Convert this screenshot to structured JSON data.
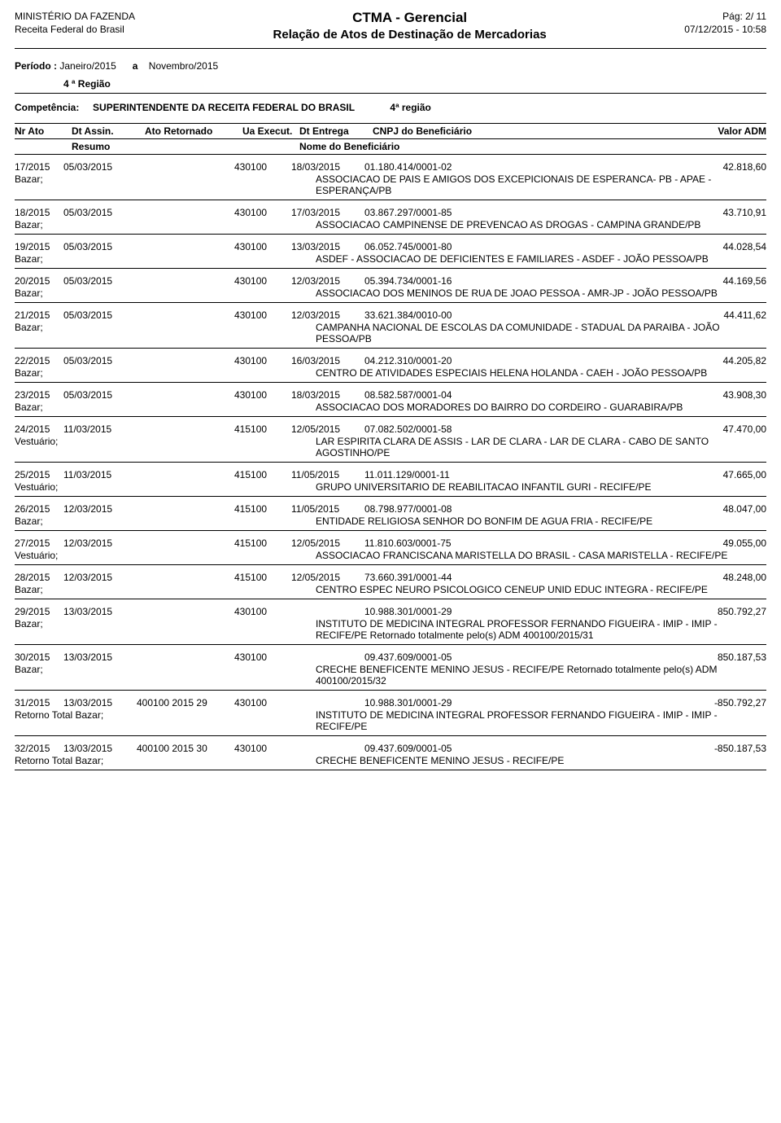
{
  "header": {
    "ministry": "MINISTÉRIO DA FAZENDA",
    "agency": "Receita Federal do Brasil",
    "title1": "CTMA - Gerencial",
    "title2": "Relação de Atos de Destinação de Mercadorias",
    "page_label": "Pág:",
    "page_current": "2",
    "page_sep": "/ ",
    "page_total": "11",
    "datetime": "07/12/2015 - 10:58"
  },
  "periodo": {
    "label": "Período :",
    "from": "Janeiro/2015",
    "sep": "a",
    "to": "Novembro/2015"
  },
  "regiao": "4 ª Região",
  "competencia": {
    "label": "Competência:",
    "value": "SUPERINTENDENTE DA RECEITA FEDERAL DO BRASIL",
    "regiao": "4ª  região"
  },
  "columns": {
    "nr_ato": "Nr Ato",
    "dt_assin": "Dt Assin.",
    "ato_retornado": "Ato Retornado",
    "ua": "Ua Execut.",
    "dt_entrega": "Dt Entrega",
    "cnpj": "CNPJ do Beneficiário",
    "valor": "Valor ADM",
    "resumo": "Resumo",
    "nome": "Nome do Beneficiário"
  },
  "entries": [
    {
      "nr": "17/2015",
      "dt": "05/03/2015",
      "ret": "",
      "ua": "430100",
      "ent": "18/03/2015",
      "cnpj": "01.180.414/0001-02",
      "valor": "42.818,60",
      "resumo": "Bazar;",
      "nome": "ASSOCIACAO DE PAIS E AMIGOS DOS EXCEPICIONAIS DE ESPERANCA- PB - APAE - ESPERANÇA/PB"
    },
    {
      "nr": "18/2015",
      "dt": "05/03/2015",
      "ret": "",
      "ua": "430100",
      "ent": "17/03/2015",
      "cnpj": "03.867.297/0001-85",
      "valor": "43.710,91",
      "resumo": "Bazar;",
      "nome": "ASSOCIACAO CAMPINENSE DE PREVENCAO AS DROGAS - CAMPINA GRANDE/PB"
    },
    {
      "nr": "19/2015",
      "dt": "05/03/2015",
      "ret": "",
      "ua": "430100",
      "ent": "13/03/2015",
      "cnpj": "06.052.745/0001-80",
      "valor": "44.028,54",
      "resumo": "Bazar;",
      "nome": "ASDEF - ASSOCIACAO DE DEFICIENTES E FAMILIARES - ASDEF - JOÃO PESSOA/PB"
    },
    {
      "nr": "20/2015",
      "dt": "05/03/2015",
      "ret": "",
      "ua": "430100",
      "ent": "12/03/2015",
      "cnpj": "05.394.734/0001-16",
      "valor": "44.169,56",
      "resumo": "Bazar;",
      "nome": "ASSOCIACAO DOS MENINOS DE RUA DE JOAO PESSOA - AMR-JP - JOÃO PESSOA/PB"
    },
    {
      "nr": "21/2015",
      "dt": "05/03/2015",
      "ret": "",
      "ua": "430100",
      "ent": "12/03/2015",
      "cnpj": "33.621.384/0010-00",
      "valor": "44.411,62",
      "resumo": "Bazar;",
      "nome": "CAMPANHA NACIONAL DE ESCOLAS DA COMUNIDADE - STADUAL DA PARAIBA - JOÃO PESSOA/PB"
    },
    {
      "nr": "22/2015",
      "dt": "05/03/2015",
      "ret": "",
      "ua": "430100",
      "ent": "16/03/2015",
      "cnpj": "04.212.310/0001-20",
      "valor": "44.205,82",
      "resumo": "Bazar;",
      "nome": "CENTRO DE ATIVIDADES ESPECIAIS HELENA HOLANDA - CAEH - JOÃO PESSOA/PB"
    },
    {
      "nr": "23/2015",
      "dt": "05/03/2015",
      "ret": "",
      "ua": "430100",
      "ent": "18/03/2015",
      "cnpj": "08.582.587/0001-04",
      "valor": "43.908,30",
      "resumo": "Bazar;",
      "nome": "ASSOCIACAO DOS MORADORES DO BAIRRO DO CORDEIRO - GUARABIRA/PB"
    },
    {
      "nr": "24/2015",
      "dt": "11/03/2015",
      "ret": "",
      "ua": "415100",
      "ent": "12/05/2015",
      "cnpj": "07.082.502/0001-58",
      "valor": "47.470,00",
      "resumo": "Vestuário;",
      "nome": "LAR ESPIRITA CLARA DE ASSIS - LAR DE CLARA - LAR DE CLARA - CABO DE SANTO AGOSTINHO/PE"
    },
    {
      "nr": "25/2015",
      "dt": "11/03/2015",
      "ret": "",
      "ua": "415100",
      "ent": "11/05/2015",
      "cnpj": "11.011.129/0001-11",
      "valor": "47.665,00",
      "resumo": "Vestuário;",
      "nome": "GRUPO UNIVERSITARIO DE REABILITACAO INFANTIL GURI - RECIFE/PE"
    },
    {
      "nr": "26/2015",
      "dt": "12/03/2015",
      "ret": "",
      "ua": "415100",
      "ent": "11/05/2015",
      "cnpj": "08.798.977/0001-08",
      "valor": "48.047,00",
      "resumo": "Bazar;",
      "nome": "ENTIDADE RELIGIOSA SENHOR DO BONFIM DE AGUA FRIA - RECIFE/PE"
    },
    {
      "nr": "27/2015",
      "dt": "12/03/2015",
      "ret": "",
      "ua": "415100",
      "ent": "12/05/2015",
      "cnpj": "11.810.603/0001-75",
      "valor": "49.055,00",
      "resumo": "Vestuário;",
      "nome": "ASSOCIACAO FRANCISCANA MARISTELLA DO BRASIL - CASA MARISTELLA - RECIFE/PE"
    },
    {
      "nr": "28/2015",
      "dt": "12/03/2015",
      "ret": "",
      "ua": "415100",
      "ent": "12/05/2015",
      "cnpj": "73.660.391/0001-44",
      "valor": "48.248,00",
      "resumo": "Bazar;",
      "nome": "CENTRO ESPEC NEURO PSICOLOGICO CENEUP UNID EDUC INTEGRA - RECIFE/PE"
    },
    {
      "nr": "29/2015",
      "dt": "13/03/2015",
      "ret": "",
      "ua": "430100",
      "ent": "",
      "cnpj": "10.988.301/0001-29",
      "valor": "850.792,27",
      "resumo": "Bazar;",
      "nome": "INSTITUTO DE MEDICINA INTEGRAL PROFESSOR FERNANDO FIGUEIRA - IMIP - IMIP - RECIFE/PE Retornado totalmente pelo(s) ADM 400100/2015/31"
    },
    {
      "nr": "30/2015",
      "dt": "13/03/2015",
      "ret": "",
      "ua": "430100",
      "ent": "",
      "cnpj": "09.437.609/0001-05",
      "valor": "850.187,53",
      "resumo": "Bazar;",
      "nome": "CRECHE BENEFICENTE MENINO JESUS - RECIFE/PE Retornado totalmente pelo(s) ADM 400100/2015/32"
    },
    {
      "nr": "31/2015",
      "dt": "13/03/2015",
      "ret": "400100 2015 29",
      "ua": "430100",
      "ent": "",
      "cnpj": "10.988.301/0001-29",
      "valor": "-850.792,27",
      "resumo": "Retorno Total    Bazar;",
      "nome": "INSTITUTO DE MEDICINA INTEGRAL PROFESSOR FERNANDO FIGUEIRA - IMIP - IMIP - RECIFE/PE"
    },
    {
      "nr": "32/2015",
      "dt": "13/03/2015",
      "ret": "400100 2015 30",
      "ua": "430100",
      "ent": "",
      "cnpj": "09.437.609/0001-05",
      "valor": "-850.187,53",
      "resumo": "Retorno Total    Bazar;",
      "nome": "CRECHE BENEFICENTE MENINO JESUS - RECIFE/PE"
    }
  ]
}
